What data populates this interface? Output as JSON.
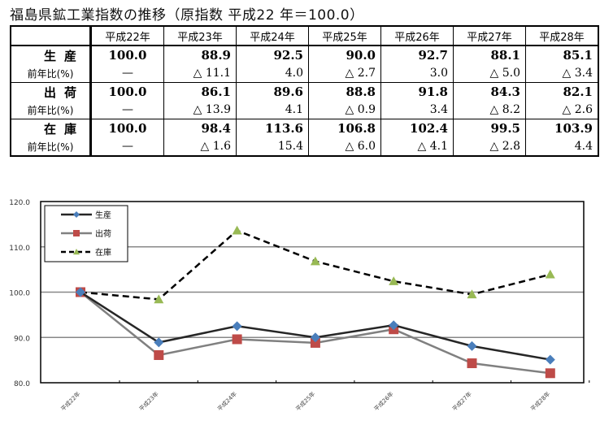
{
  "title": "福島県鉱工業指数の推移（原指数 平成22 年＝100.0）",
  "table": {
    "headers": [
      "平成22年",
      "平成23年",
      "平成24年",
      "平成25年",
      "平成26年",
      "平成27年",
      "平成28年"
    ],
    "rows": [
      {
        "label": "生産",
        "values": [
          "100.0",
          "88.9",
          "92.5",
          "90.0",
          "92.7",
          "88.1",
          "85.1"
        ],
        "sub_label": "前年比(%)",
        "sub": [
          "—",
          "△ 11.1",
          "4.0",
          "△ 2.7",
          "3.0",
          "△ 5.0",
          "△ 3.4"
        ]
      },
      {
        "label": "出荷",
        "values": [
          "100.0",
          "86.1",
          "89.6",
          "88.8",
          "91.8",
          "84.3",
          "82.1"
        ],
        "sub_label": "前年比(%)",
        "sub": [
          "—",
          "△ 13.9",
          "4.1",
          "△ 0.9",
          "3.4",
          "△ 8.2",
          "△ 2.6"
        ]
      },
      {
        "label": "在庫",
        "values": [
          "100.0",
          "98.4",
          "113.6",
          "106.8",
          "102.4",
          "99.5",
          "103.9"
        ],
        "sub_label": "前年比(%)",
        "sub": [
          "—",
          "△ 1.6",
          "15.4",
          "△ 6.0",
          "△ 4.1",
          "△ 2.8",
          "4.4"
        ]
      }
    ]
  },
  "chart_data": {
    "type": "line",
    "categories": [
      "平成22年",
      "平成23年",
      "平成24年",
      "平成25年",
      "平成26年",
      "平成27年",
      "平成28年"
    ],
    "ylim": [
      80,
      120
    ],
    "yticks": [
      "80.0",
      "90.0",
      "100.0",
      "110.0",
      "120.0"
    ],
    "grid": true,
    "legend": "top-left",
    "series": [
      {
        "name": "生産",
        "values": [
          100.0,
          88.9,
          92.5,
          90.0,
          92.7,
          88.1,
          85.1
        ],
        "line_color": "#262626",
        "marker": "diamond",
        "marker_color": "#4a7ebb",
        "dash": false
      },
      {
        "name": "出荷",
        "values": [
          100.0,
          86.1,
          89.6,
          88.8,
          91.8,
          84.3,
          82.1
        ],
        "line_color": "#808080",
        "marker": "square",
        "marker_color": "#be4b48",
        "dash": false
      },
      {
        "name": "在庫",
        "values": [
          100.0,
          98.4,
          113.6,
          106.8,
          102.4,
          99.5,
          103.9
        ],
        "line_color": "#000000",
        "marker": "triangle",
        "marker_color": "#98b954",
        "dash": true
      }
    ]
  }
}
